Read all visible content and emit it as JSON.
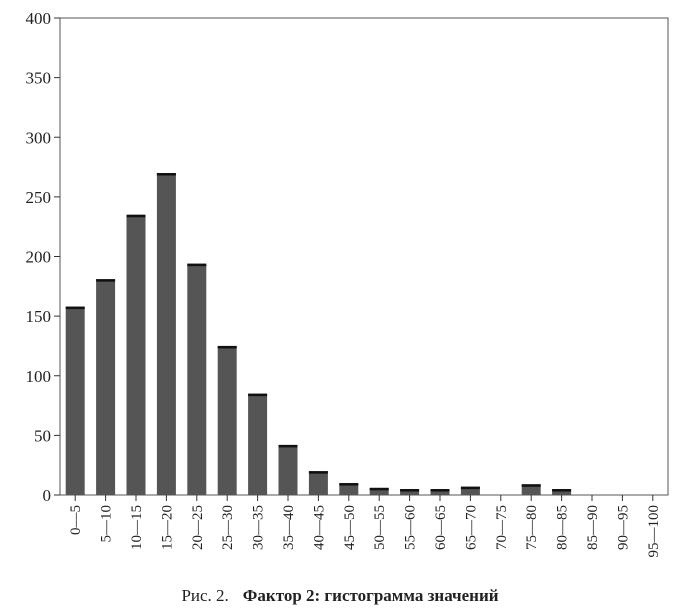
{
  "chart_data": {
    "type": "bar",
    "categories": [
      "0—5",
      "5—10",
      "10—15",
      "15—20",
      "20—25",
      "25—30",
      "30—35",
      "35—40",
      "40—45",
      "45—50",
      "50—55",
      "55—60",
      "60—65",
      "65—70",
      "70—75",
      "75—80",
      "80—85",
      "85—90",
      "90—95",
      "95—100"
    ],
    "values": [
      158,
      181,
      235,
      270,
      194,
      125,
      85,
      42,
      20,
      10,
      6,
      5,
      5,
      7,
      0,
      9,
      5,
      0,
      0,
      0
    ],
    "ylim": [
      0,
      400
    ],
    "yticks": [
      0,
      50,
      100,
      150,
      200,
      250,
      300,
      350,
      400
    ],
    "grid": false,
    "bar_color": "#555555",
    "caption_figure": "Рис. 2.",
    "caption_title": "Фактор 2: гистограмма значений"
  }
}
